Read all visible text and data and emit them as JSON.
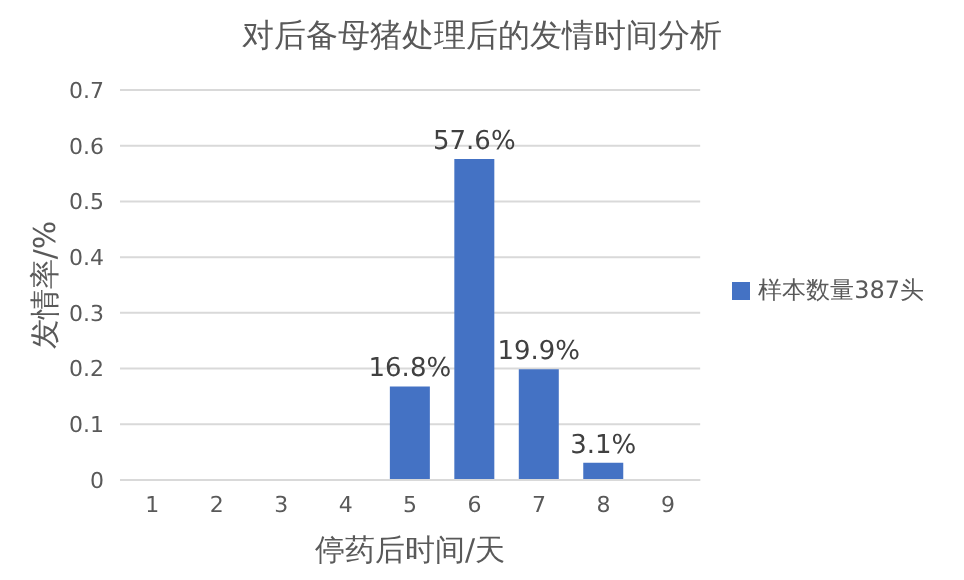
{
  "chart_data": {
    "type": "bar",
    "title": "对后备母猪处理后的发情时间分析",
    "xlabel": "停药后时间/天",
    "ylabel": "发情率/%",
    "categories": [
      "1",
      "2",
      "3",
      "4",
      "5",
      "6",
      "7",
      "8",
      "9"
    ],
    "series": [
      {
        "name": "样本数量387头",
        "color": "#4472c4",
        "values": [
          null,
          null,
          null,
          null,
          0.168,
          0.576,
          0.199,
          0.031,
          null
        ],
        "value_labels": [
          null,
          null,
          null,
          null,
          "16.8%",
          "57.6%",
          "19.9%",
          "3.1%",
          null
        ]
      }
    ],
    "ylim": [
      0,
      0.7
    ],
    "yticks": [
      0,
      0.1,
      0.2,
      0.3,
      0.4,
      0.5,
      0.6,
      0.7
    ],
    "grid": "y",
    "legend": "right"
  }
}
